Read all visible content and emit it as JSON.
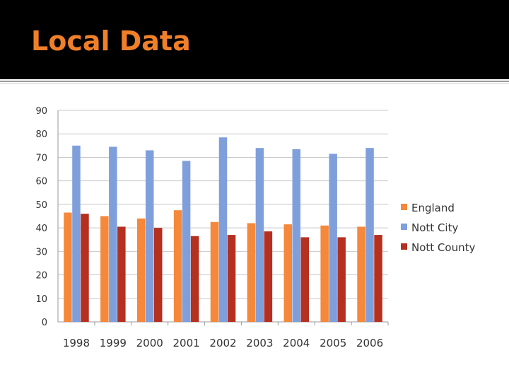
{
  "slide": {
    "title": "Local Data"
  },
  "chart_data": {
    "type": "bar",
    "categories": [
      "1998",
      "1999",
      "2000",
      "2001",
      "2002",
      "2003",
      "2004",
      "2005",
      "2006"
    ],
    "series": [
      {
        "name": "England",
        "color": "#f5883a",
        "values": [
          46.5,
          45,
          44,
          47.5,
          42.5,
          42,
          41.5,
          41,
          40.5
        ]
      },
      {
        "name": "Nott City",
        "color": "#7f9fdc",
        "values": [
          75,
          74.5,
          73,
          68.5,
          78.5,
          74,
          73.5,
          71.5,
          74
        ]
      },
      {
        "name": "Nott County",
        "color": "#b5301f",
        "values": [
          46,
          40.5,
          40,
          36.5,
          37,
          38.5,
          36,
          36,
          37
        ]
      }
    ],
    "ylim": [
      0,
      90
    ],
    "yticks": [
      0,
      10,
      20,
      30,
      40,
      50,
      60,
      70,
      80,
      90
    ],
    "grid": true,
    "legend": "right"
  }
}
